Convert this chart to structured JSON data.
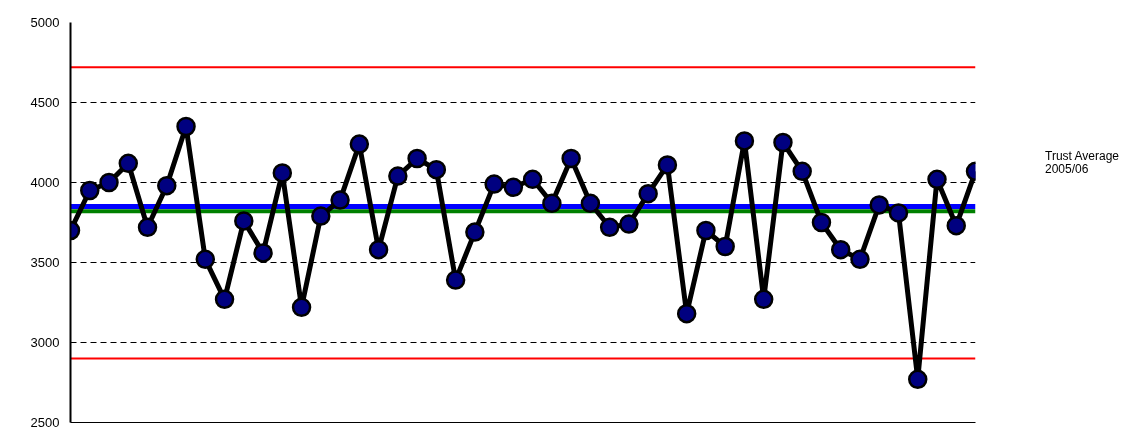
{
  "chart_data": {
    "type": "line",
    "categories": [
      null,
      null,
      null,
      null,
      null,
      null,
      null,
      null,
      null,
      null,
      null,
      null,
      null,
      null,
      null,
      null,
      null,
      null,
      null,
      null,
      null,
      null,
      null,
      null,
      null,
      null,
      null,
      null,
      null,
      null,
      null,
      null,
      null,
      null,
      null,
      null,
      null,
      null,
      null,
      null,
      null,
      null,
      null,
      null,
      null,
      null,
      null,
      null
    ],
    "series": [
      {
        "color": "#000000",
        "values": [
          3700,
          3950,
          4000,
          4120,
          3720,
          3980,
          4350,
          3520,
          3270,
          3760,
          3560,
          4060,
          3220,
          3790,
          3890,
          4240,
          3580,
          4040,
          4150,
          4080,
          3390,
          3690,
          3990,
          3970,
          4020,
          3870,
          4150,
          3870,
          3720,
          3740,
          3930,
          4110,
          3180,
          3700,
          3600,
          4260,
          3270,
          4250,
          4070,
          3750,
          3580,
          3520,
          3860,
          3810,
          2770,
          4020,
          3730,
          4070
        ]
      }
    ],
    "ylim": [
      2500,
      5000
    ],
    "yticks": [
      2500,
      3000,
      3500,
      4000,
      4500,
      5000
    ],
    "grid": "y",
    "marker": "circle",
    "line_style": "solid",
    "ref_lines": [
      {
        "axis": "y",
        "value": 4720,
        "color": "#ff0000"
      },
      {
        "axis": "y",
        "value": 2900,
        "color": "#ff0000"
      },
      {
        "axis": "y",
        "value": 3820,
        "color": "#008000"
      },
      {
        "axis": "y",
        "value": 3850,
        "color": "#0000ff"
      }
    ],
    "annotations": [
      "Trust Average 2005/06"
    ]
  }
}
